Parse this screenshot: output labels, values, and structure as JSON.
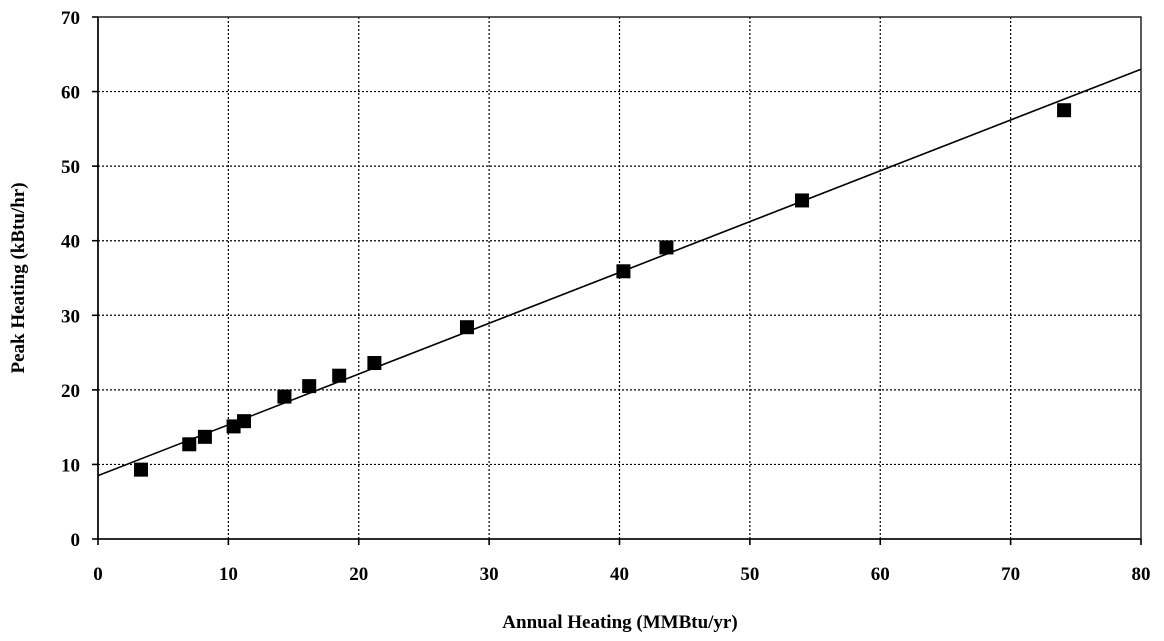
{
  "chart_data": {
    "type": "scatter",
    "title": "",
    "xlabel": "Annual Heating (MMBtu/yr)",
    "ylabel": "Peak Heating (kBtu/hr)",
    "xlim": [
      0,
      80
    ],
    "ylim": [
      0,
      70
    ],
    "x_ticks": [
      0,
      10,
      20,
      30,
      40,
      50,
      60,
      70,
      80
    ],
    "y_ticks": [
      0,
      10,
      20,
      30,
      40,
      50,
      60,
      70
    ],
    "grid": true,
    "legend": "none",
    "series": [
      {
        "marker": "square",
        "color": "#000000",
        "points": [
          {
            "x": 3.3,
            "y": 9.3
          },
          {
            "x": 7.0,
            "y": 12.7
          },
          {
            "x": 8.2,
            "y": 13.7
          },
          {
            "x": 10.4,
            "y": 15.1
          },
          {
            "x": 11.2,
            "y": 15.8
          },
          {
            "x": 14.3,
            "y": 19.1
          },
          {
            "x": 16.2,
            "y": 20.5
          },
          {
            "x": 18.5,
            "y": 21.9
          },
          {
            "x": 21.2,
            "y": 23.6
          },
          {
            "x": 28.3,
            "y": 28.4
          },
          {
            "x": 40.3,
            "y": 35.9
          },
          {
            "x": 43.6,
            "y": 39.1
          },
          {
            "x": 54.0,
            "y": 45.4
          },
          {
            "x": 74.1,
            "y": 57.5
          }
        ]
      }
    ],
    "trendline": {
      "type": "linear",
      "points": [
        {
          "x": 0,
          "y": 8.5
        },
        {
          "x": 80,
          "y": 63.0
        }
      ]
    }
  }
}
